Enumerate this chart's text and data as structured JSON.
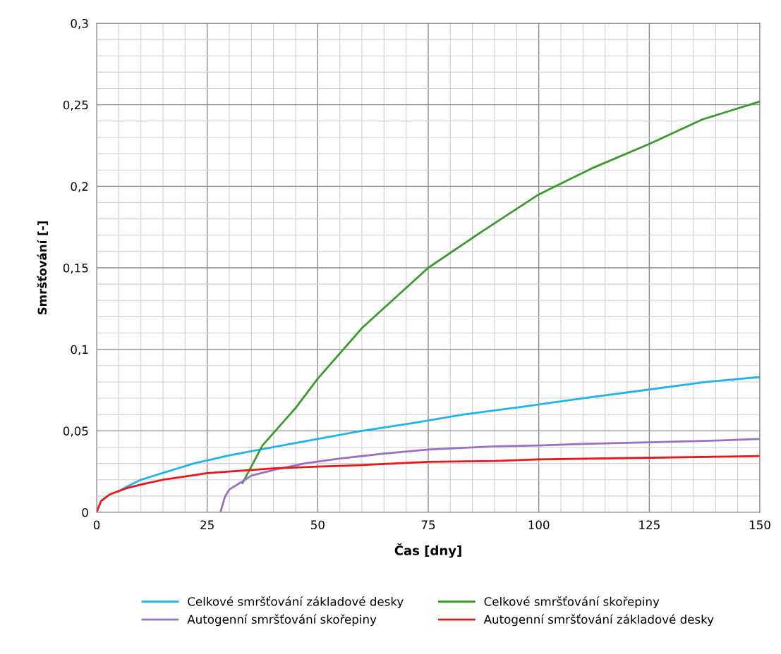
{
  "chart_data": {
    "type": "line",
    "xlabel": "Čas [dny]",
    "ylabel": "Smršťování [-]",
    "xlim": [
      0,
      150
    ],
    "xticks": [
      0,
      25,
      50,
      75,
      100,
      125,
      150
    ],
    "ylim": [
      0,
      0.3
    ],
    "yticks": [
      {
        "value": 0,
        "label": "0"
      },
      {
        "value": 0.05,
        "label": "0,05"
      },
      {
        "value": 0.1,
        "label": "0,1"
      },
      {
        "value": 0.15,
        "label": "0,15"
      },
      {
        "value": 0.2,
        "label": "0,2"
      },
      {
        "value": 0.25,
        "label": "0,25"
      },
      {
        "value": 0.3,
        "label": "0,3"
      }
    ],
    "grid": true,
    "legend": "bottom",
    "marker": "none",
    "line_style": "solid",
    "series": [
      {
        "name": "Celkové smršťování základové desky",
        "color": "#1fb4f0",
        "x": [
          5,
          7,
          10,
          16,
          22,
          30,
          40,
          50,
          60,
          72,
          83,
          97,
          110,
          124,
          138,
          150
        ],
        "values": [
          0.013,
          0.016,
          0.02,
          0.025,
          0.03,
          0.035,
          0.04,
          0.045,
          0.05,
          0.055,
          0.06,
          0.065,
          0.07,
          0.075,
          0.08,
          0.083
        ]
      },
      {
        "name": "Celkové smršťování skořepiny",
        "color": "#3a9a2e",
        "x": [
          33,
          37.5,
          45,
          50,
          60,
          75,
          87,
          100,
          112,
          125,
          137,
          150
        ],
        "values": [
          0.018,
          0.041,
          0.064,
          0.082,
          0.113,
          0.15,
          0.172,
          0.195,
          0.211,
          0.226,
          0.241,
          0.252
        ]
      },
      {
        "name": "Autogenní smršťování skořepiny",
        "color": "#9b6fc8",
        "x": [
          28,
          29,
          30,
          33,
          35,
          40,
          47,
          55,
          65,
          75,
          90,
          100,
          110,
          125,
          140,
          150
        ],
        "values": [
          0,
          0.0095,
          0.014,
          0.019,
          0.0225,
          0.026,
          0.03,
          0.033,
          0.036,
          0.0385,
          0.0405,
          0.041,
          0.042,
          0.043,
          0.044,
          0.045
        ]
      },
      {
        "name": "Autogenní smršťování základové desky",
        "color": "#f01414",
        "x": [
          0,
          1,
          2,
          3,
          5,
          7,
          10,
          15,
          20,
          25,
          30,
          40,
          50,
          60,
          75,
          90,
          100,
          125,
          150
        ],
        "values": [
          0,
          0.007,
          0.009,
          0.011,
          0.013,
          0.015,
          0.017,
          0.02,
          0.022,
          0.024,
          0.025,
          0.027,
          0.028,
          0.029,
          0.031,
          0.0315,
          0.0325,
          0.0335,
          0.0345
        ]
      }
    ]
  }
}
